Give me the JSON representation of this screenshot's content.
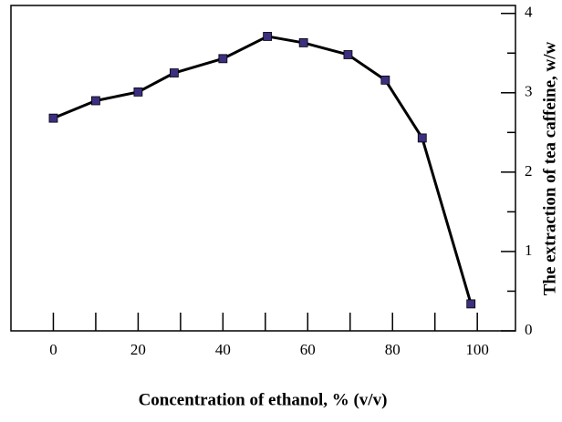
{
  "chart_data": {
    "type": "line",
    "x_label": "Concentration of ethanol, % (v/v)",
    "y_label": "The extraction of tea caffeine, w/w",
    "x": [
      0,
      10,
      20,
      28.5,
      40,
      50.5,
      59,
      69.5,
      78.3,
      87,
      98.5
    ],
    "series": [
      {
        "name": "caffeine",
        "color": "#000000",
        "marker_color": "#3b2f80",
        "values": [
          2.68,
          2.9,
          3.01,
          3.25,
          3.43,
          3.71,
          3.63,
          3.48,
          3.16,
          2.43,
          0.34
        ]
      }
    ],
    "xlim": [
      -10,
      109
    ],
    "ylim": [
      0,
      4.1
    ],
    "xticks": [
      0,
      20,
      40,
      60,
      80,
      100
    ],
    "xticks_minor": [
      10,
      30,
      50,
      70,
      90
    ],
    "yticks": [
      0,
      1,
      2,
      3,
      4
    ],
    "yticks_minor": [
      0.5,
      1.5,
      2.5,
      3.5
    ],
    "y_axis_side": "right",
    "grid": false
  }
}
